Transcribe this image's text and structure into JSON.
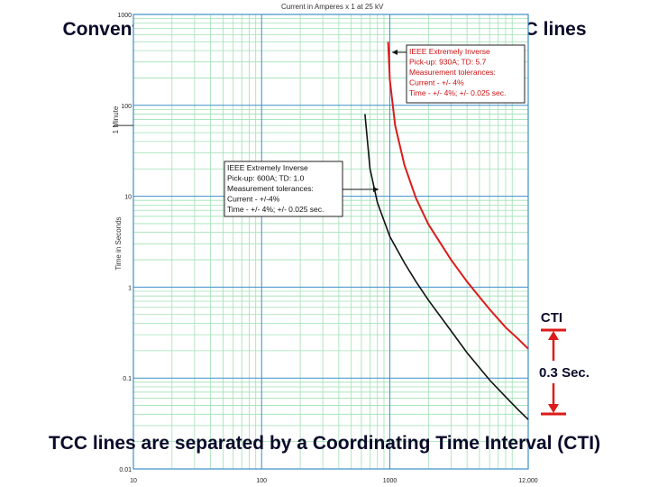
{
  "slide": {
    "title_top": "Conventional coordination uses single, nominal TCC lines",
    "title_bottom": "TCC lines are separated by a Coordinating Time Interval (CTI)"
  },
  "chart_data": {
    "type": "line",
    "scale": "log-log",
    "xlabel": "Current in Amperes x 1 at 25 kV",
    "ylabel": "Time in Seconds",
    "y_marker_label": "1 Minute",
    "xlim": [
      10,
      12000
    ],
    "ylim": [
      0.01,
      1000
    ],
    "x_tick_labels": [
      "10",
      "100",
      "1000",
      "12,000"
    ],
    "y_tick_labels": [
      "0.01",
      "0.1",
      "1",
      "10",
      "100",
      "1000"
    ],
    "grid": true,
    "series": [
      {
        "name": "IEEE Extremely Inverse",
        "color": "#dd1a1a",
        "x": [
          970,
          1000,
          1100,
          1300,
          1600,
          2000,
          3000,
          4000,
          5000,
          6000,
          8000,
          10000,
          12000
        ],
        "y": [
          500,
          190,
          60,
          22,
          9.5,
          4.9,
          2.0,
          1.15,
          0.78,
          0.57,
          0.36,
          0.27,
          0.21
        ]
      },
      {
        "name": "IEEE Extremely Inverse",
        "color": "#111111",
        "x": [
          640,
          700,
          800,
          1000,
          1300,
          1600,
          2000,
          3000,
          4000,
          5000,
          6000,
          8000,
          10000,
          12000
        ],
        "y": [
          80,
          20,
          8.5,
          3.6,
          1.85,
          1.15,
          0.72,
          0.33,
          0.19,
          0.13,
          0.095,
          0.062,
          0.045,
          0.035
        ]
      }
    ],
    "annotations": [
      {
        "series": 0,
        "lines": [
          "IEEE Extremely Inverse",
          "Pick-up: 930A; TD: 5.7",
          "Measurement tolerances:",
          "Current - +/- 4%",
          "Time - +/- 4%; +/- 0.025 sec."
        ]
      },
      {
        "series": 1,
        "lines": [
          "IEEE Extremely Inverse",
          "Pick-up: 600A; TD: 1.0",
          "Measurement tolerances:",
          "Current - +/-4%",
          "Time - +/- 4%; +/- 0.025 sec."
        ]
      }
    ],
    "cti": {
      "label": "CTI",
      "value_label": "0.3 Sec."
    }
  }
}
